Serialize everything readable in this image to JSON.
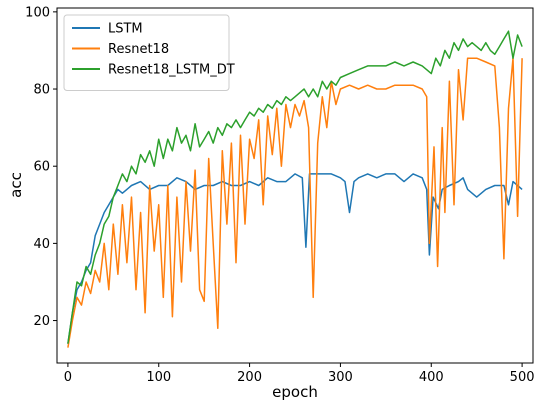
{
  "chart_data": {
    "type": "line",
    "title": "",
    "xlabel": "epoch",
    "ylabel": "acc",
    "xlim": [
      -12,
      512
    ],
    "ylim": [
      9,
      101
    ],
    "xticks": [
      0,
      100,
      200,
      300,
      400,
      500
    ],
    "yticks": [
      20,
      40,
      60,
      80,
      100
    ],
    "grid": false,
    "legend": "top-left",
    "series": [
      {
        "name": "LSTM",
        "color": "#1f77b4",
        "points": [
          [
            0,
            14
          ],
          [
            5,
            22
          ],
          [
            10,
            28
          ],
          [
            15,
            30
          ],
          [
            20,
            33
          ],
          [
            25,
            35
          ],
          [
            30,
            42
          ],
          [
            35,
            45
          ],
          [
            40,
            48
          ],
          [
            45,
            50
          ],
          [
            50,
            52
          ],
          [
            55,
            54
          ],
          [
            60,
            53
          ],
          [
            70,
            55
          ],
          [
            80,
            56
          ],
          [
            90,
            54
          ],
          [
            100,
            55
          ],
          [
            110,
            55
          ],
          [
            120,
            57
          ],
          [
            130,
            56
          ],
          [
            140,
            54
          ],
          [
            150,
            55
          ],
          [
            160,
            55
          ],
          [
            170,
            56
          ],
          [
            180,
            55
          ],
          [
            190,
            55
          ],
          [
            200,
            56
          ],
          [
            210,
            55
          ],
          [
            220,
            57
          ],
          [
            230,
            56
          ],
          [
            240,
            56
          ],
          [
            250,
            58
          ],
          [
            258,
            57
          ],
          [
            262,
            39
          ],
          [
            266,
            58
          ],
          [
            270,
            58
          ],
          [
            280,
            58
          ],
          [
            290,
            58
          ],
          [
            300,
            57
          ],
          [
            305,
            56
          ],
          [
            310,
            48
          ],
          [
            315,
            56
          ],
          [
            320,
            57
          ],
          [
            330,
            58
          ],
          [
            340,
            57
          ],
          [
            350,
            58
          ],
          [
            360,
            58
          ],
          [
            370,
            56
          ],
          [
            380,
            58
          ],
          [
            390,
            57
          ],
          [
            395,
            54
          ],
          [
            398,
            37
          ],
          [
            402,
            52
          ],
          [
            408,
            49
          ],
          [
            412,
            54
          ],
          [
            420,
            55
          ],
          [
            430,
            56
          ],
          [
            435,
            57
          ],
          [
            440,
            54
          ],
          [
            450,
            52
          ],
          [
            460,
            54
          ],
          [
            470,
            55
          ],
          [
            480,
            55
          ],
          [
            485,
            50
          ],
          [
            490,
            56
          ],
          [
            495,
            55
          ],
          [
            500,
            54
          ]
        ]
      },
      {
        "name": "Resnet18",
        "color": "#ff7f0e",
        "points": [
          [
            0,
            13
          ],
          [
            5,
            20
          ],
          [
            10,
            26
          ],
          [
            15,
            24
          ],
          [
            20,
            30
          ],
          [
            25,
            27
          ],
          [
            30,
            33
          ],
          [
            35,
            30
          ],
          [
            40,
            40
          ],
          [
            45,
            28
          ],
          [
            50,
            45
          ],
          [
            55,
            32
          ],
          [
            60,
            50
          ],
          [
            65,
            35
          ],
          [
            70,
            52
          ],
          [
            75,
            28
          ],
          [
            80,
            48
          ],
          [
            85,
            22
          ],
          [
            90,
            55
          ],
          [
            95,
            38
          ],
          [
            100,
            50
          ],
          [
            105,
            26
          ],
          [
            110,
            55
          ],
          [
            115,
            21
          ],
          [
            120,
            52
          ],
          [
            125,
            30
          ],
          [
            130,
            56
          ],
          [
            135,
            38
          ],
          [
            140,
            59
          ],
          [
            145,
            28
          ],
          [
            150,
            25
          ],
          [
            155,
            62
          ],
          [
            160,
            40
          ],
          [
            165,
            18
          ],
          [
            170,
            64
          ],
          [
            175,
            45
          ],
          [
            180,
            66
          ],
          [
            185,
            35
          ],
          [
            190,
            68
          ],
          [
            195,
            45
          ],
          [
            200,
            67
          ],
          [
            205,
            62
          ],
          [
            210,
            72
          ],
          [
            215,
            50
          ],
          [
            220,
            73
          ],
          [
            225,
            63
          ],
          [
            230,
            75
          ],
          [
            235,
            60
          ],
          [
            240,
            76
          ],
          [
            245,
            70
          ],
          [
            250,
            76
          ],
          [
            255,
            73
          ],
          [
            260,
            77
          ],
          [
            265,
            70
          ],
          [
            270,
            26
          ],
          [
            275,
            66
          ],
          [
            280,
            78
          ],
          [
            285,
            70
          ],
          [
            290,
            82
          ],
          [
            295,
            76
          ],
          [
            300,
            80
          ],
          [
            310,
            81
          ],
          [
            320,
            80
          ],
          [
            330,
            81
          ],
          [
            340,
            80
          ],
          [
            350,
            80
          ],
          [
            360,
            81
          ],
          [
            370,
            81
          ],
          [
            380,
            81
          ],
          [
            390,
            80
          ],
          [
            395,
            78
          ],
          [
            398,
            40
          ],
          [
            403,
            65
          ],
          [
            407,
            34
          ],
          [
            412,
            70
          ],
          [
            415,
            48
          ],
          [
            420,
            82
          ],
          [
            425,
            50
          ],
          [
            430,
            85
          ],
          [
            435,
            72
          ],
          [
            440,
            88
          ],
          [
            450,
            88
          ],
          [
            460,
            87
          ],
          [
            470,
            86
          ],
          [
            475,
            70
          ],
          [
            480,
            36
          ],
          [
            485,
            75
          ],
          [
            490,
            88
          ],
          [
            495,
            47
          ],
          [
            500,
            88
          ]
        ]
      },
      {
        "name": "Resnet18_LSTM_DT",
        "color": "#2ca02c",
        "points": [
          [
            0,
            14
          ],
          [
            5,
            22
          ],
          [
            10,
            30
          ],
          [
            15,
            29
          ],
          [
            20,
            34
          ],
          [
            25,
            32
          ],
          [
            30,
            37
          ],
          [
            35,
            40
          ],
          [
            40,
            45
          ],
          [
            45,
            47
          ],
          [
            50,
            52
          ],
          [
            55,
            55
          ],
          [
            60,
            58
          ],
          [
            65,
            56
          ],
          [
            70,
            60
          ],
          [
            75,
            58
          ],
          [
            80,
            63
          ],
          [
            85,
            61
          ],
          [
            90,
            64
          ],
          [
            95,
            60
          ],
          [
            100,
            67
          ],
          [
            105,
            62
          ],
          [
            110,
            67
          ],
          [
            115,
            64
          ],
          [
            120,
            70
          ],
          [
            125,
            66
          ],
          [
            130,
            68
          ],
          [
            135,
            64
          ],
          [
            140,
            71
          ],
          [
            145,
            65
          ],
          [
            150,
            67
          ],
          [
            155,
            69
          ],
          [
            160,
            66
          ],
          [
            165,
            70
          ],
          [
            170,
            68
          ],
          [
            175,
            71
          ],
          [
            180,
            70
          ],
          [
            185,
            72
          ],
          [
            190,
            70
          ],
          [
            195,
            72
          ],
          [
            200,
            74
          ],
          [
            205,
            73
          ],
          [
            210,
            75
          ],
          [
            215,
            74
          ],
          [
            220,
            76
          ],
          [
            225,
            75
          ],
          [
            230,
            77
          ],
          [
            235,
            76
          ],
          [
            240,
            78
          ],
          [
            245,
            77
          ],
          [
            250,
            78
          ],
          [
            255,
            79
          ],
          [
            260,
            80
          ],
          [
            265,
            78
          ],
          [
            270,
            80
          ],
          [
            275,
            78
          ],
          [
            280,
            82
          ],
          [
            285,
            80
          ],
          [
            290,
            82
          ],
          [
            295,
            81
          ],
          [
            300,
            83
          ],
          [
            310,
            84
          ],
          [
            320,
            85
          ],
          [
            330,
            86
          ],
          [
            340,
            86
          ],
          [
            350,
            86
          ],
          [
            360,
            87
          ],
          [
            370,
            86
          ],
          [
            380,
            87
          ],
          [
            390,
            86
          ],
          [
            395,
            85
          ],
          [
            400,
            84
          ],
          [
            405,
            88
          ],
          [
            410,
            86
          ],
          [
            415,
            90
          ],
          [
            420,
            88
          ],
          [
            425,
            92
          ],
          [
            430,
            90
          ],
          [
            435,
            93
          ],
          [
            440,
            91
          ],
          [
            445,
            92
          ],
          [
            450,
            91
          ],
          [
            455,
            90
          ],
          [
            460,
            92
          ],
          [
            465,
            90
          ],
          [
            470,
            89
          ],
          [
            475,
            91
          ],
          [
            480,
            93
          ],
          [
            485,
            95
          ],
          [
            490,
            88
          ],
          [
            495,
            94
          ],
          [
            500,
            91
          ]
        ]
      }
    ]
  }
}
